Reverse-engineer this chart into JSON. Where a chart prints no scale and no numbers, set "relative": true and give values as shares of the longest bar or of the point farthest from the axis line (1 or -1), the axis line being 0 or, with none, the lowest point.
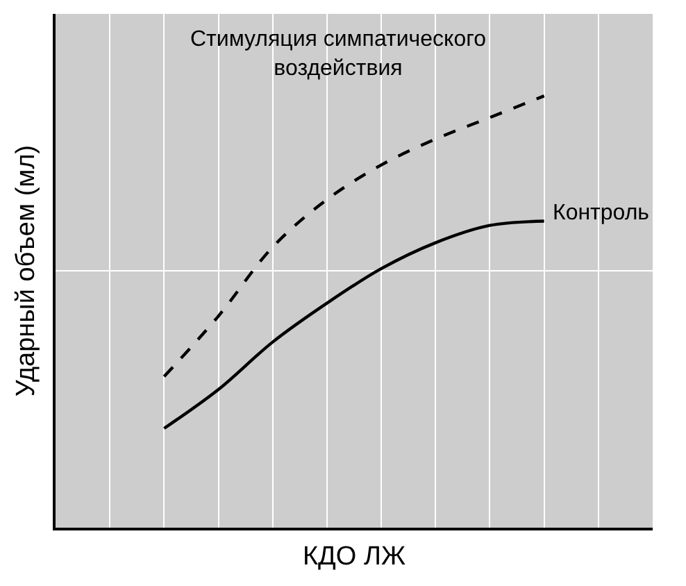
{
  "chart_data": {
    "type": "line",
    "relative": true,
    "xlabel": "КДО ЛЖ",
    "ylabel": "Ударный объем (мл)",
    "categories": [
      null,
      null,
      null,
      null,
      null,
      null,
      null,
      null,
      null,
      null
    ],
    "series": [
      {
        "name": "Стимуляция симпатического воздействия",
        "color": "#000000",
        "line_style": "dashed",
        "values": [
          null,
          0.35,
          0.49,
          0.65,
          0.76,
          0.84,
          0.9,
          0.95,
          1,
          null
        ]
      },
      {
        "name": "Контроль",
        "color": "#000000",
        "line_style": "solid",
        "values": [
          null,
          0.23,
          0.32,
          0.43,
          0.52,
          0.6,
          0.66,
          0.7,
          0.71,
          null
        ]
      }
    ],
    "grid": true,
    "marker": "none",
    "legend": false
  }
}
